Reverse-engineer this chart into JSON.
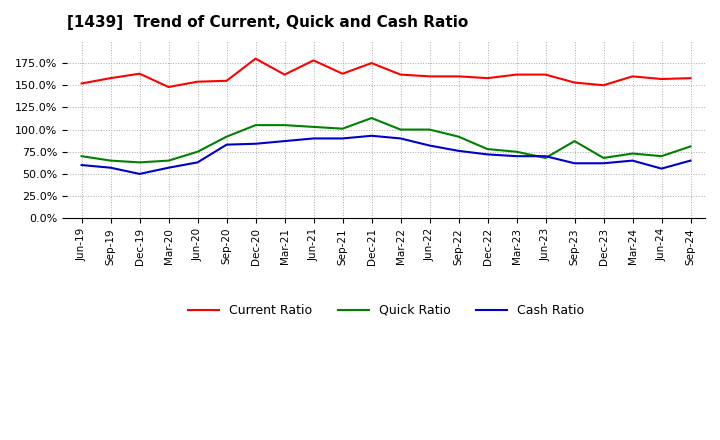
{
  "title": "[1439]  Trend of Current, Quick and Cash Ratio",
  "x_labels": [
    "Jun-19",
    "Sep-19",
    "Dec-19",
    "Mar-20",
    "Jun-20",
    "Sep-20",
    "Dec-20",
    "Mar-21",
    "Jun-21",
    "Sep-21",
    "Dec-21",
    "Mar-22",
    "Jun-22",
    "Sep-22",
    "Dec-22",
    "Mar-23",
    "Jun-23",
    "Sep-23",
    "Dec-23",
    "Mar-24",
    "Jun-24",
    "Sep-24"
  ],
  "current_ratio": [
    152,
    158,
    163,
    148,
    154,
    155,
    180,
    162,
    178,
    163,
    175,
    162,
    160,
    160,
    158,
    162,
    162,
    153,
    150,
    160,
    157,
    158
  ],
  "quick_ratio": [
    70,
    65,
    63,
    65,
    75,
    92,
    105,
    105,
    103,
    101,
    113,
    100,
    100,
    92,
    78,
    75,
    68,
    87,
    68,
    73,
    70,
    81
  ],
  "cash_ratio": [
    60,
    57,
    50,
    57,
    63,
    83,
    84,
    87,
    90,
    90,
    93,
    90,
    82,
    76,
    72,
    70,
    70,
    62,
    62,
    65,
    56,
    65
  ],
  "current_color": "#ff0000",
  "quick_color": "#008000",
  "cash_color": "#0000cd",
  "ylim": [
    0,
    200
  ],
  "yticks": [
    0,
    25,
    50,
    75,
    100,
    125,
    150,
    175
  ],
  "background_color": "#ffffff",
  "grid_color": "#aaaaaa",
  "line_width": 1.5
}
